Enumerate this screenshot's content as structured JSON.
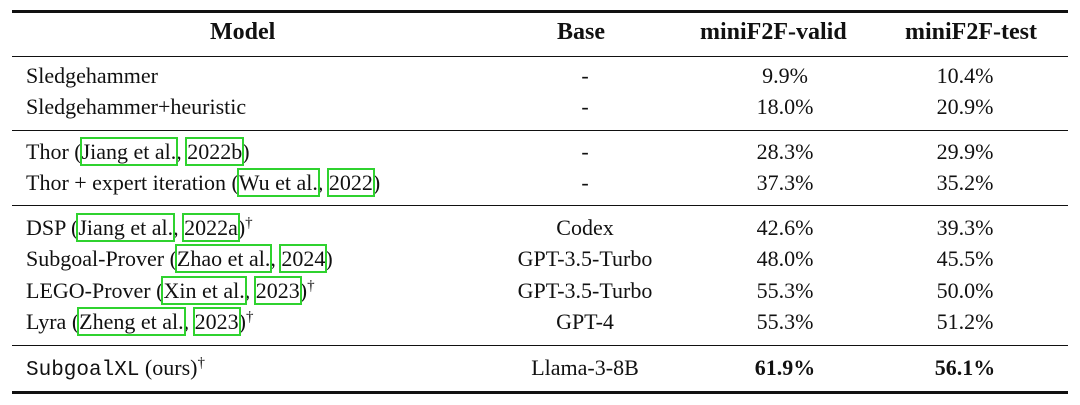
{
  "header": {
    "model": "Model",
    "base": "Base",
    "valid": "miniF2F-valid",
    "test": "miniF2F-test"
  },
  "rows": [
    {
      "model": "Sledgehammer",
      "base": "-",
      "valid": "9.9%",
      "test": "10.4%"
    },
    {
      "model": "Sledgehammer+heuristic",
      "base": "-",
      "valid": "18.0%",
      "test": "20.9%"
    },
    {
      "model_prefix": "Thor (",
      "cite_author": "Jiang et al.",
      "cite_sep": ", ",
      "cite_year": "2022b",
      "model_suffix": ")",
      "base": "-",
      "valid": "28.3%",
      "test": "29.9%"
    },
    {
      "model_prefix": "Thor + expert iteration (",
      "cite_author": "Wu et al.",
      "cite_sep": ", ",
      "cite_year": "2022",
      "model_suffix": ")",
      "base": "-",
      "valid": "37.3%",
      "test": "35.2%"
    },
    {
      "model_prefix": "DSP (",
      "cite_author": "Jiang et al.",
      "cite_sep": ", ",
      "cite_year": "2022a",
      "model_suffix": ")",
      "dagger": "†",
      "base": "Codex",
      "valid": "42.6%",
      "test": "39.3%"
    },
    {
      "model_prefix": "Subgoal-Prover (",
      "cite_author": "Zhao et al.",
      "cite_sep": ", ",
      "cite_year": "2024",
      "model_suffix": ")",
      "base": "GPT-3.5-Turbo",
      "valid": "48.0%",
      "test": "45.5%"
    },
    {
      "model_prefix": "LEGO-Prover (",
      "cite_author": "Xin et al.",
      "cite_sep": ", ",
      "cite_year": "2023",
      "model_suffix": ")",
      "dagger": "†",
      "base": "GPT-3.5-Turbo",
      "valid": "55.3%",
      "test": "50.0%"
    },
    {
      "model_prefix": "Lyra (",
      "cite_author": "Zheng et al.",
      "cite_sep": ", ",
      "cite_year": "2023",
      "model_suffix": ")",
      "dagger": "†",
      "base": "GPT-4",
      "valid": "55.3%",
      "test": "51.2%"
    },
    {
      "model_mono": "SubgoalXL",
      "model_suffix": " (ours)",
      "dagger": "†",
      "base": "Llama-3-8B",
      "valid": "61.9%",
      "test": "56.1%"
    }
  ],
  "colors": {
    "citation_box": "#2fd22f",
    "rule": "#111111",
    "text": "#111111"
  }
}
